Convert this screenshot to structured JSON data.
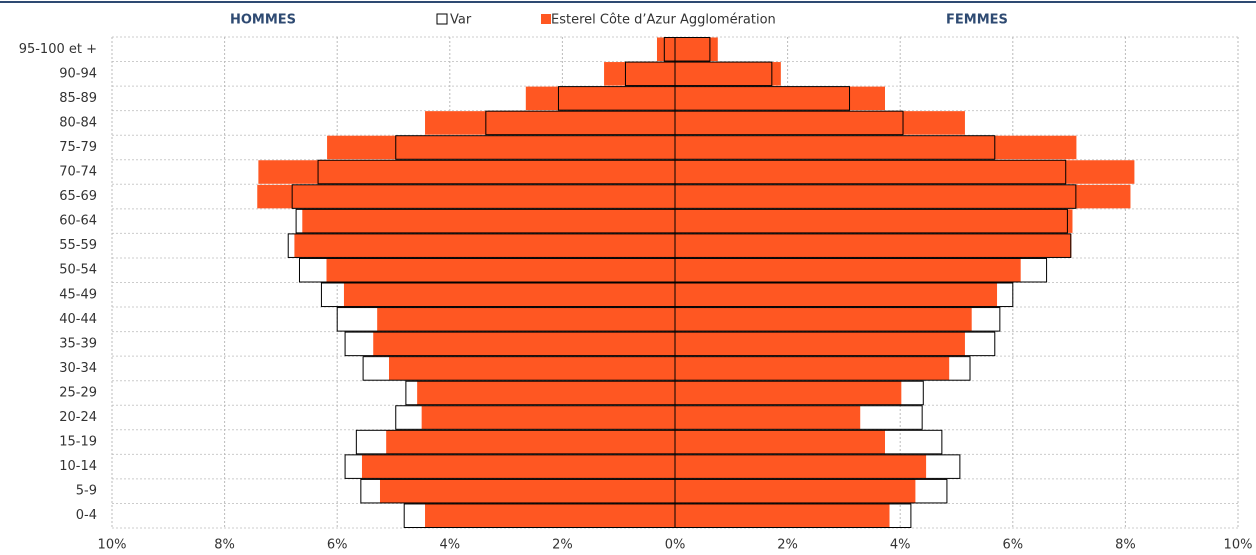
{
  "chart_data": {
    "type": "pyramid",
    "left_label": "HOMMES",
    "right_label": "FEMMES",
    "categories": [
      "0-4",
      "5-9",
      "10-14",
      "15-19",
      "20-24",
      "25-29",
      "30-34",
      "35-39",
      "40-44",
      "45-49",
      "50-54",
      "55-59",
      "60-64",
      "65-69",
      "70-74",
      "75-79",
      "80-84",
      "85-89",
      "90-94",
      "95-100 et +"
    ],
    "series": [
      {
        "name": "Var",
        "color": "#ffffff",
        "edge": "#000000",
        "men": [
          4.81,
          5.58,
          5.86,
          5.66,
          4.96,
          4.78,
          5.54,
          5.86,
          6.0,
          6.28,
          6.67,
          6.87,
          6.73,
          6.8,
          6.34,
          4.96,
          3.36,
          2.07,
          0.88,
          0.19
        ],
        "women": [
          4.19,
          4.83,
          5.06,
          4.74,
          4.39,
          4.41,
          5.24,
          5.68,
          5.77,
          6.0,
          6.6,
          7.03,
          6.97,
          7.12,
          6.94,
          5.68,
          4.05,
          3.1,
          1.72,
          0.62
        ]
      },
      {
        "name": "Esterel Côte d’Azur Agglomération",
        "color": "#ff5722",
        "men": [
          4.44,
          5.24,
          5.56,
          5.13,
          4.5,
          4.58,
          5.08,
          5.36,
          5.29,
          5.88,
          6.19,
          6.76,
          6.62,
          7.42,
          7.4,
          6.18,
          4.44,
          2.65,
          1.26,
          0.32
        ],
        "women": [
          3.81,
          4.27,
          4.46,
          3.73,
          3.29,
          4.02,
          4.87,
          5.15,
          5.27,
          5.72,
          6.14,
          7.04,
          7.06,
          8.09,
          8.16,
          7.13,
          5.15,
          3.73,
          1.88,
          0.76
        ]
      }
    ],
    "xlim": [
      0,
      10
    ],
    "xticks": [
      {
        "value": 0,
        "label": "0%"
      },
      {
        "value": 2,
        "label": "2%"
      },
      {
        "value": 4,
        "label": "4%"
      },
      {
        "value": 6,
        "label": "6%"
      },
      {
        "value": 8,
        "label": "8%"
      },
      {
        "value": 10,
        "label": "10%"
      }
    ],
    "grid": true
  }
}
